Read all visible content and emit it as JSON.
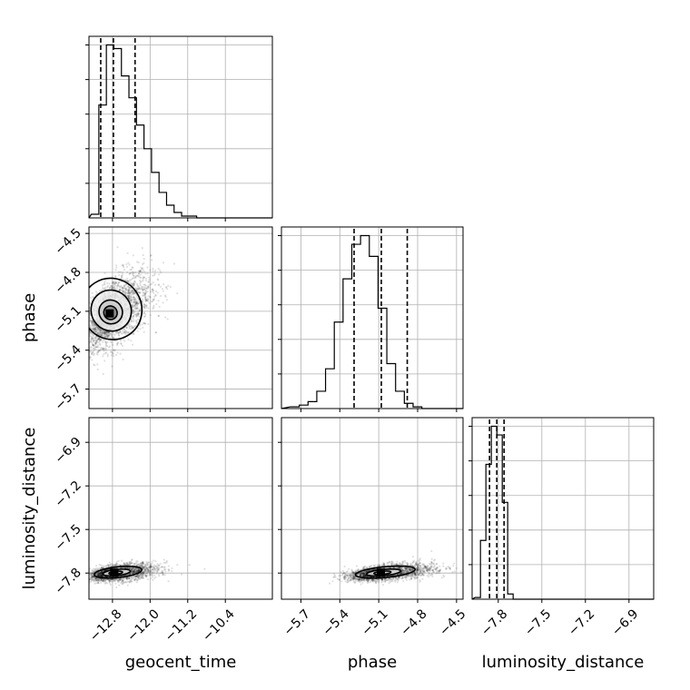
{
  "chart_data": {
    "type": "corner",
    "parameters": [
      "geocent_time",
      "phase",
      "luminosity_distance"
    ],
    "grid": true,
    "axes": {
      "geocent_time": {
        "ticks": [
          -12.8,
          -12.0,
          -11.2,
          -10.4
        ],
        "tick_labels": [
          "−12.8",
          "−12.0",
          "−11.2",
          "−10.4"
        ],
        "range": [
          -13.3,
          -9.4
        ]
      },
      "phase": {
        "ticks": [
          -5.7,
          -5.4,
          -5.1,
          -4.8,
          -4.5
        ],
        "tick_labels": [
          "−5.7",
          "−5.4",
          "−5.1",
          "−4.8",
          "−4.5"
        ],
        "range": [
          -5.85,
          -4.45
        ]
      },
      "luminosity_distance": {
        "ticks": [
          -7.8,
          -7.5,
          -7.2,
          -6.9
        ],
        "tick_labels": [
          "−7.8",
          "−7.5",
          "−7.2",
          "−6.9"
        ],
        "range": [
          -7.98,
          -6.73
        ]
      }
    },
    "histograms": {
      "geocent_time": {
        "bin_start": -13.25,
        "bin_width": 0.16,
        "counts": [
          2,
          62,
          95,
          93,
          78,
          66,
          51,
          38,
          25,
          14,
          7,
          3,
          1,
          1
        ],
        "quantiles": [
          -13.05,
          -12.78,
          -12.32
        ]
      },
      "phase": {
        "bin_start": -5.78,
        "bin_width": 0.0675,
        "counts": [
          1,
          2,
          4,
          10,
          23,
          50,
          75,
          95,
          100,
          88,
          58,
          26,
          10,
          3,
          1
        ],
        "quantiles": [
          -5.29,
          -5.08,
          -4.88
        ]
      },
      "luminosity_distance": {
        "bin_start": -7.96,
        "bin_width": 0.0375,
        "counts": [
          1,
          34,
          78,
          100,
          95,
          56,
          3
        ],
        "quantiles": [
          -7.86,
          -7.81,
          -7.76
        ]
      }
    },
    "joint": {
      "phase_vs_geocent_time": {
        "center": [
          -12.85,
          -5.12
        ],
        "sigma": [
          0.32,
          0.14
        ],
        "rho": 0.55,
        "contours": [
          0.4,
          0.7,
          1.2,
          1.8
        ]
      },
      "luminosity_distance_vs_geocent_time": {
        "center": [
          -12.75,
          -7.8
        ],
        "sigma": [
          0.33,
          0.028
        ],
        "rho": 0.4,
        "contours": [
          0.4,
          0.8,
          1.4
        ]
      },
      "luminosity_distance_vs_phase": {
        "center": [
          -5.08,
          -7.8
        ],
        "sigma": [
          0.15,
          0.028
        ],
        "rho": 0.45,
        "contours": [
          0.4,
          0.8,
          1.4
        ]
      }
    }
  }
}
